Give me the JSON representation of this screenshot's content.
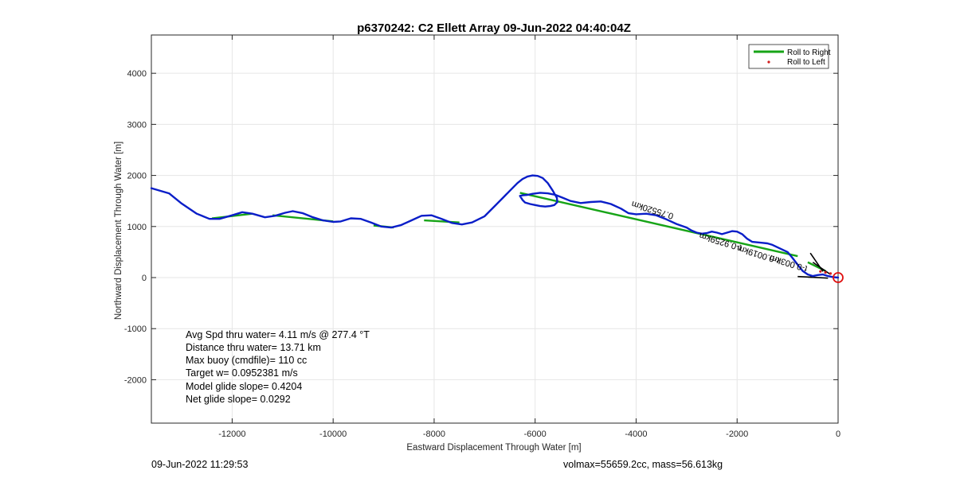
{
  "chart_data": {
    "type": "line",
    "title": "p6370242: C2 Ellett Array 09-Jun-2022 04:40:04Z",
    "xlabel": "Eastward Displacement Through Water [m]",
    "ylabel": "Northward Displacement Through Water [m]",
    "xlim": [
      -13600,
      0
    ],
    "ylim": [
      -2850,
      4750
    ],
    "xticks": [
      -12000,
      -10000,
      -8000,
      -6000,
      -4000,
      -2000,
      0
    ],
    "xtick_labels": [
      "-12000",
      "-10000",
      "-8000",
      "-6000",
      "-4000",
      "-2000",
      "0"
    ],
    "yticks": [
      -2000,
      -1000,
      0,
      1000,
      2000,
      3000,
      4000
    ],
    "ytick_labels": [
      "-2000",
      "-1000",
      "0",
      "1000",
      "2000",
      "3000",
      "4000"
    ],
    "grid": true,
    "legend_position": "top-right",
    "legend": [
      "Roll to Right",
      "Roll to Left"
    ],
    "colors": {
      "track": "#0a1ec8",
      "roll_right": "#17a417",
      "roll_left": "#d21e1e",
      "start_marker": "#e01010",
      "annotation": "#000000"
    },
    "series": [
      {
        "name": "track",
        "x": [
          -13600,
          -13250,
          -13000,
          -12700,
          -12450,
          -12250,
          -12000,
          -11800,
          -11600,
          -11350,
          -11150,
          -10950,
          -10800,
          -10600,
          -10400,
          -10200,
          -10000,
          -9850,
          -9650,
          -9450,
          -9250,
          -9050,
          -8850,
          -8650,
          -8450,
          -8250,
          -8050,
          -7850,
          -7650,
          -7450,
          -7250,
          -7000,
          -6800,
          -6650,
          -6500,
          -6350,
          -6250,
          -6150,
          -6050,
          -5950,
          -5850,
          -5750,
          -5650,
          -5570,
          -5560,
          -5620,
          -5700,
          -5800,
          -5900,
          -6000,
          -6100,
          -6200,
          -6250,
          -6300,
          -6250,
          -6150,
          -6050,
          -5900,
          -5750,
          -5600,
          -5450,
          -5300,
          -5100,
          -4900,
          -4700,
          -4500,
          -4300,
          -4150,
          -4000,
          -3800,
          -3600,
          -3400,
          -3200,
          -3000,
          -2900,
          -2800,
          -2700,
          -2600,
          -2500,
          -2400,
          -2300,
          -2200,
          -2100,
          -2000,
          -1900,
          -1800,
          -1700,
          -1600,
          -1500,
          -1400,
          -1300,
          -1150,
          -1000,
          -900,
          -800,
          -700,
          -600,
          -500,
          -400,
          -300,
          -200,
          -100,
          0
        ],
        "y": [
          1750,
          1650,
          1450,
          1250,
          1150,
          1150,
          1220,
          1280,
          1250,
          1180,
          1210,
          1270,
          1300,
          1260,
          1180,
          1120,
          1090,
          1100,
          1160,
          1150,
          1080,
          1000,
          980,
          1030,
          1120,
          1210,
          1220,
          1150,
          1070,
          1040,
          1080,
          1200,
          1400,
          1550,
          1700,
          1850,
          1930,
          1980,
          2000,
          1990,
          1950,
          1850,
          1700,
          1560,
          1480,
          1420,
          1400,
          1390,
          1400,
          1420,
          1440,
          1470,
          1520,
          1600,
          1610,
          1620,
          1640,
          1660,
          1650,
          1620,
          1560,
          1500,
          1460,
          1480,
          1490,
          1440,
          1350,
          1260,
          1240,
          1250,
          1220,
          1140,
          1050,
          980,
          920,
          880,
          860,
          870,
          900,
          880,
          850,
          880,
          910,
          900,
          850,
          760,
          700,
          690,
          680,
          670,
          640,
          570,
          500,
          380,
          250,
          130,
          60,
          30,
          50,
          60,
          30,
          10,
          0
        ]
      },
      {
        "name": "Roll to Right",
        "segments": [
          {
            "x": [
              -12400,
              -11600
            ],
            "y": [
              1160,
              1250
            ]
          },
          {
            "x": [
              -11200,
              -10000
            ],
            "y": [
              1220,
              1100
            ]
          },
          {
            "x": [
              -9200,
              -8800
            ],
            "y": [
              1020,
              980
            ]
          },
          {
            "x": [
              -8200,
              -7500
            ],
            "y": [
              1120,
              1080
            ]
          },
          {
            "x": [
              -6300,
              -800
            ],
            "y": [
              1660,
              420
            ]
          },
          {
            "x": [
              -600,
              -250
            ],
            "y": [
              300,
              130
            ]
          }
        ]
      },
      {
        "name": "Roll to Left",
        "x": [
          -350,
          -250,
          -150
        ],
        "y": [
          120,
          100,
          80
        ]
      }
    ],
    "annotation_lines": [
      {
        "x": [
          -550,
          -300
        ],
        "y": [
          480,
          120
        ]
      },
      {
        "x": [
          -500,
          -150
        ],
        "y": [
          300,
          60
        ]
      },
      {
        "x": [
          -600,
          -200
        ],
        "y": [
          10,
          -10
        ]
      },
      {
        "x": [
          -800,
          -450
        ],
        "y": [
          20,
          5
        ]
      }
    ],
    "rotated_labels": [
      {
        "text": "0.75520km",
        "x": -3250,
        "y": 1250,
        "angle": 17
      },
      {
        "text": "t-0.9259km",
        "x": -1900,
        "y": 630,
        "angle": 17
      },
      {
        "text": "t-0.0019km",
        "x": -1150,
        "y": 380,
        "angle": 17
      },
      {
        "text": "t-0.003km",
        "x": -600,
        "y": 220,
        "angle": 17
      }
    ],
    "start_marker": {
      "x": 0,
      "y": 0
    },
    "stats": [
      "Avg Spd thru water=  4.11 m/s @ 277.4 °T",
      "Distance thru water= 13.71 km",
      "Max buoy (cmdfile)= 110 cc",
      "Target w= 0.0952381 m/s",
      "Model glide slope= 0.4204",
      "Net glide slope= 0.0292"
    ],
    "footer_left": "09-Jun-2022 11:29:53",
    "footer_right": "volmax=55659.2cc, mass=56.613kg"
  }
}
